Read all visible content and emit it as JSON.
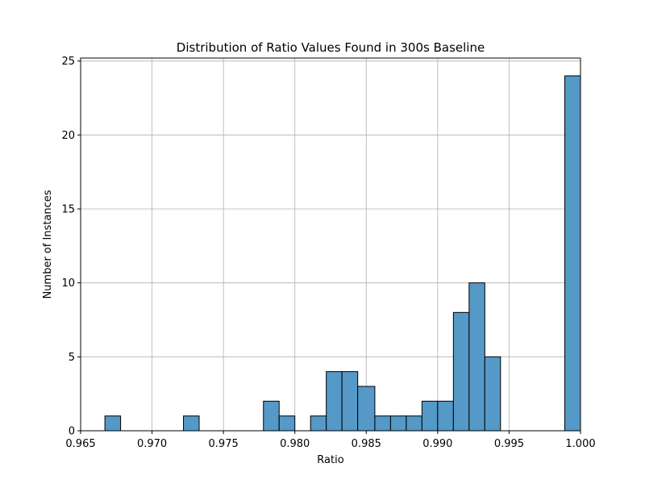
{
  "chart_data": {
    "type": "bar",
    "title": "Distribution of Ratio Values Found in 300s Baseline",
    "xlabel": "Ratio",
    "ylabel": "Number of Instances",
    "xlim": [
      0.965,
      1.0
    ],
    "ylim": [
      0,
      25.2
    ],
    "grid": true,
    "bar_color": "#5499C7",
    "edge_color": "#000000",
    "x_ticks": [
      0.965,
      0.97,
      0.975,
      0.98,
      0.985,
      0.99,
      0.995,
      1.0
    ],
    "x_tick_labels": [
      "0.965",
      "0.970",
      "0.975",
      "0.980",
      "0.985",
      "0.990",
      "0.995",
      "1.000"
    ],
    "y_ticks": [
      0,
      5,
      10,
      15,
      20,
      25
    ],
    "y_tick_labels": [
      "0",
      "5",
      "10",
      "15",
      "20",
      "25"
    ],
    "bins": [
      {
        "x0": 0.9667,
        "x1": 0.9678,
        "count": 1
      },
      {
        "x0": 0.9722,
        "x1": 0.9733,
        "count": 1
      },
      {
        "x0": 0.9778,
        "x1": 0.9789,
        "count": 2
      },
      {
        "x0": 0.9789,
        "x1": 0.98,
        "count": 1
      },
      {
        "x0": 0.9811,
        "x1": 0.9822,
        "count": 1
      },
      {
        "x0": 0.9822,
        "x1": 0.9833,
        "count": 4
      },
      {
        "x0": 0.9833,
        "x1": 0.9844,
        "count": 4
      },
      {
        "x0": 0.9844,
        "x1": 0.9856,
        "count": 3
      },
      {
        "x0": 0.9856,
        "x1": 0.9867,
        "count": 1
      },
      {
        "x0": 0.9867,
        "x1": 0.9878,
        "count": 1
      },
      {
        "x0": 0.9878,
        "x1": 0.9889,
        "count": 1
      },
      {
        "x0": 0.9889,
        "x1": 0.99,
        "count": 2
      },
      {
        "x0": 0.99,
        "x1": 0.9911,
        "count": 2
      },
      {
        "x0": 0.9911,
        "x1": 0.9922,
        "count": 8
      },
      {
        "x0": 0.9922,
        "x1": 0.9933,
        "count": 10
      },
      {
        "x0": 0.9933,
        "x1": 0.9944,
        "count": 5
      },
      {
        "x0": 0.9989,
        "x1": 1.0,
        "count": 24
      }
    ]
  }
}
